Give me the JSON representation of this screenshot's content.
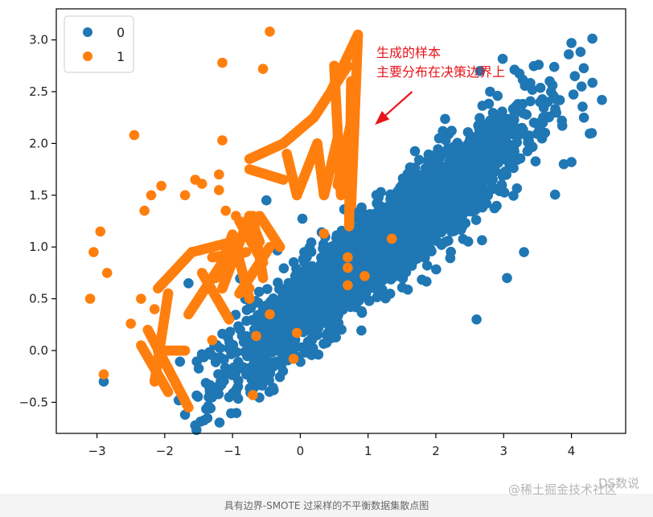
{
  "chart_data": {
    "type": "scatter",
    "xlim": [
      -3.6,
      4.8
    ],
    "ylim": [
      -0.8,
      3.3
    ],
    "xticks": [
      -3,
      -2,
      -1,
      0,
      1,
      2,
      3,
      4
    ],
    "yticks": [
      -0.5,
      0.0,
      0.5,
      1.0,
      1.5,
      2.0,
      2.5,
      3.0
    ],
    "xtick_labels": [
      "−3",
      "−2",
      "−1",
      "0",
      "1",
      "2",
      "3",
      "4"
    ],
    "ytick_labels": [
      "−0.5",
      "0.0",
      "0.5",
      "1.0",
      "1.5",
      "2.0",
      "2.5",
      "3.0"
    ],
    "grid": false,
    "legend_position": "top-left",
    "series": [
      {
        "name": "0",
        "color": "#1f77b4",
        "cluster": {
          "center": [
            1.25,
            1.05
          ],
          "slope": 0.52,
          "long_sd": 1.05,
          "cross_sd": 0.2,
          "n": 2600,
          "xmin": -2.0,
          "xmax": 4.4
        },
        "outliers": [
          [
            -2.9,
            -0.3
          ],
          [
            4.0,
            2.97
          ],
          [
            4.05,
            2.65
          ],
          [
            4.45,
            2.42
          ],
          [
            4.15,
            2.55
          ],
          [
            2.65,
            2.7
          ],
          [
            2.8,
            2.5
          ],
          [
            -1.65,
            0.65
          ],
          [
            -1.7,
            -0.62
          ],
          [
            -1.05,
            -0.45
          ],
          [
            -1.35,
            -0.45
          ],
          [
            -0.5,
            1.45
          ],
          [
            3.7,
            2.5
          ],
          [
            3.65,
            2.4
          ],
          [
            3.05,
            0.7
          ],
          [
            2.6,
            0.3
          ],
          [
            3.3,
            0.95
          ],
          [
            4.0,
            1.82
          ],
          [
            4.3,
            2.1
          ]
        ]
      },
      {
        "name": "1",
        "color": "#ff7f0e",
        "original_points": [
          [
            -3.1,
            0.5
          ],
          [
            -3.05,
            0.95
          ],
          [
            -2.95,
            1.15
          ],
          [
            -2.85,
            0.75
          ],
          [
            -2.9,
            -0.23
          ],
          [
            -2.5,
            0.26
          ],
          [
            -2.45,
            2.08
          ],
          [
            -2.35,
            0.5
          ],
          [
            -2.3,
            1.35
          ],
          [
            -2.2,
            1.5
          ],
          [
            -2.05,
            1.59
          ],
          [
            -1.95,
            0.55
          ],
          [
            -1.7,
            1.5
          ],
          [
            -1.55,
            1.65
          ],
          [
            -1.45,
            1.61
          ],
          [
            -1.2,
            1.7
          ],
          [
            -1.2,
            1.55
          ],
          [
            -1.15,
            2.03
          ],
          [
            -1.15,
            2.78
          ],
          [
            -1.1,
            1.35
          ],
          [
            -0.95,
            1.3
          ],
          [
            -0.55,
            2.72
          ],
          [
            -0.45,
            3.08
          ],
          [
            -0.75,
            0.6
          ],
          [
            -0.65,
            0.14
          ],
          [
            -0.7,
            -0.43
          ],
          [
            -0.45,
            0.35
          ],
          [
            -0.1,
            -0.08
          ],
          [
            -0.05,
            0.17
          ],
          [
            0.35,
            1.13
          ],
          [
            0.7,
            0.9
          ],
          [
            0.7,
            0.8
          ],
          [
            0.7,
            0.63
          ],
          [
            0.95,
            0.72
          ],
          [
            1.35,
            1.08
          ],
          [
            -1.3,
            0.1
          ],
          [
            -2.1,
            0.0
          ],
          [
            -2.15,
            0.4
          ]
        ],
        "synthetic_segments": [
          [
            [
              -2.35,
              0.05
            ],
            [
              -1.95,
              -0.4
            ]
          ],
          [
            [
              -2.25,
              0.2
            ],
            [
              -1.65,
              -0.55
            ]
          ],
          [
            [
              -2.05,
              0.0
            ],
            [
              -1.7,
              0.0
            ]
          ],
          [
            [
              -2.15,
              -0.3
            ],
            [
              -1.95,
              0.55
            ]
          ],
          [
            [
              -2.1,
              0.6
            ],
            [
              -1.6,
              0.95
            ]
          ],
          [
            [
              -1.6,
              0.95
            ],
            [
              -1.0,
              1.05
            ]
          ],
          [
            [
              -1.45,
              0.75
            ],
            [
              -1.05,
              0.3
            ]
          ],
          [
            [
              -1.25,
              0.7
            ],
            [
              -1.0,
              1.12
            ]
          ],
          [
            [
              -1.0,
              1.12
            ],
            [
              -0.75,
              0.5
            ]
          ],
          [
            [
              -0.9,
              1.25
            ],
            [
              -0.55,
              0.85
            ]
          ],
          [
            [
              -0.75,
              1.3
            ],
            [
              -0.6,
              1.05
            ]
          ],
          [
            [
              -0.6,
              1.3
            ],
            [
              -0.3,
              1.0
            ]
          ],
          [
            [
              -0.7,
              1.3
            ],
            [
              -0.55,
              0.7
            ]
          ],
          [
            [
              -0.75,
              1.3
            ],
            [
              -1.15,
              0.6
            ]
          ],
          [
            [
              -1.3,
              0.9
            ],
            [
              -0.8,
              0.95
            ]
          ],
          [
            [
              -0.75,
              1.85
            ],
            [
              -0.25,
              2.0
            ]
          ],
          [
            [
              -0.75,
              1.75
            ],
            [
              -0.25,
              1.65
            ]
          ],
          [
            [
              -0.25,
              2.0
            ],
            [
              0.2,
              2.25
            ]
          ],
          [
            [
              0.2,
              2.25
            ],
            [
              0.7,
              2.75
            ]
          ],
          [
            [
              -0.2,
              1.9
            ],
            [
              -0.05,
              1.5
            ]
          ],
          [
            [
              -0.05,
              1.5
            ],
            [
              0.25,
              2.0
            ]
          ],
          [
            [
              0.25,
              2.0
            ],
            [
              0.35,
              1.5
            ]
          ],
          [
            [
              0.35,
              1.5
            ],
            [
              0.55,
              2.05
            ]
          ],
          [
            [
              0.45,
              2.5
            ],
            [
              0.85,
              3.05
            ]
          ],
          [
            [
              0.5,
              2.75
            ],
            [
              0.6,
              1.5
            ]
          ],
          [
            [
              0.75,
              2.6
            ],
            [
              0.72,
              1.2
            ]
          ],
          [
            [
              0.85,
              3.05
            ],
            [
              0.75,
              1.4
            ]
          ],
          [
            [
              0.78,
              2.3
            ],
            [
              0.55,
              1.6
            ]
          ],
          [
            [
              -0.45,
              1.0
            ],
            [
              -0.9,
              0.55
            ]
          ],
          [
            [
              -1.2,
              0.8
            ],
            [
              -1.65,
              0.35
            ]
          ]
        ]
      }
    ],
    "annotation": {
      "lines": [
        "生成的样本",
        "主要分布在决策边界上"
      ],
      "arrow_from": [
        1.65,
        2.5
      ],
      "arrow_to": [
        1.1,
        2.18
      ]
    }
  },
  "legend": {
    "items": [
      {
        "label": "0",
        "color": "#1f77b4"
      },
      {
        "label": "1",
        "color": "#ff7f0e"
      }
    ]
  },
  "watermark": "@稀土掘金技术社区",
  "watermark_overlay": "DS数说",
  "caption": "具有边界-SMOTE 过采样的不平衡数据集散点图"
}
